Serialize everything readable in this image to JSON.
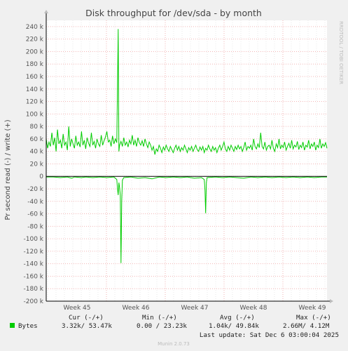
{
  "chart_data": {
    "type": "line",
    "title": "Disk throughput for /dev/sda - by month",
    "ylabel": "Pr second read (-) / write (+)",
    "side_label": "RRDTOOL / TOBI OETIKER",
    "ylim": [
      -200000,
      250000
    ],
    "y_ticks": [
      "240 k",
      "220 k",
      "200 k",
      "180 k",
      "160 k",
      "140 k",
      "120 k",
      "100 k",
      "80 k",
      "60 k",
      "40 k",
      "20 k",
      "0",
      "-20 k",
      "-40 k",
      "-60 k",
      "-80 k",
      "-100 k",
      "-120 k",
      "-140 k",
      "-160 k",
      "-180 k",
      "-200 k"
    ],
    "x_ticks": [
      "Week 45",
      "Week 46",
      "Week 47",
      "Week 48",
      "Week 49"
    ],
    "series": [
      {
        "name": "Bytes",
        "color": "#00cc00"
      }
    ],
    "write_points": [
      [
        0,
        60
      ],
      [
        2,
        45
      ],
      [
        4,
        55
      ],
      [
        6,
        48
      ],
      [
        8,
        70
      ],
      [
        10,
        50
      ],
      [
        12,
        62
      ],
      [
        14,
        40
      ],
      [
        16,
        75
      ],
      [
        18,
        52
      ],
      [
        20,
        58
      ],
      [
        22,
        45
      ],
      [
        24,
        68
      ],
      [
        26,
        50
      ],
      [
        28,
        55
      ],
      [
        30,
        42
      ],
      [
        32,
        80
      ],
      [
        34,
        48
      ],
      [
        36,
        60
      ],
      [
        38,
        52
      ],
      [
        40,
        45
      ],
      [
        42,
        65
      ],
      [
        44,
        50
      ],
      [
        46,
        55
      ],
      [
        48,
        47
      ],
      [
        50,
        72
      ],
      [
        52,
        50
      ],
      [
        54,
        58
      ],
      [
        56,
        44
      ],
      [
        58,
        62
      ],
      [
        60,
        53
      ],
      [
        62,
        48
      ],
      [
        64,
        70
      ],
      [
        66,
        50
      ],
      [
        68,
        56
      ],
      [
        70,
        45
      ],
      [
        72,
        60
      ],
      [
        74,
        52
      ],
      [
        76,
        48
      ],
      [
        78,
        66
      ],
      [
        80,
        50
      ],
      [
        82,
        57
      ],
      [
        84,
        63
      ],
      [
        86,
        72
      ],
      [
        88,
        55
      ],
      [
        90,
        58
      ],
      [
        92,
        48
      ],
      [
        94,
        65
      ],
      [
        96,
        52
      ],
      [
        98,
        60
      ],
      [
        100,
        54
      ],
      [
        102,
        236
      ],
      [
        103,
        40
      ],
      [
        104,
        50
      ],
      [
        106,
        56
      ],
      [
        108,
        48
      ],
      [
        110,
        62
      ],
      [
        112,
        50
      ],
      [
        114,
        55
      ],
      [
        116,
        47
      ],
      [
        118,
        58
      ],
      [
        120,
        52
      ],
      [
        122,
        66
      ],
      [
        124,
        50
      ],
      [
        126,
        58
      ],
      [
        128,
        48
      ],
      [
        130,
        62
      ],
      [
        132,
        54
      ],
      [
        134,
        50
      ],
      [
        136,
        57
      ],
      [
        138,
        48
      ],
      [
        140,
        60
      ],
      [
        142,
        52
      ],
      [
        144,
        46
      ],
      [
        146,
        55
      ],
      [
        148,
        50
      ],
      [
        150,
        42
      ],
      [
        152,
        48
      ],
      [
        154,
        35
      ],
      [
        156,
        44
      ],
      [
        158,
        40
      ],
      [
        160,
        50
      ],
      [
        162,
        45
      ],
      [
        164,
        38
      ],
      [
        166,
        47
      ],
      [
        168,
        42
      ],
      [
        170,
        50
      ],
      [
        172,
        44
      ],
      [
        174,
        40
      ],
      [
        176,
        48
      ],
      [
        178,
        43
      ],
      [
        180,
        38
      ],
      [
        182,
        45
      ],
      [
        184,
        50
      ],
      [
        186,
        42
      ],
      [
        188,
        48
      ],
      [
        190,
        40
      ],
      [
        192,
        46
      ],
      [
        194,
        42
      ],
      [
        196,
        50
      ],
      [
        198,
        44
      ],
      [
        200,
        38
      ],
      [
        202,
        46
      ],
      [
        204,
        42
      ],
      [
        206,
        48
      ],
      [
        208,
        40
      ],
      [
        210,
        45
      ],
      [
        212,
        50
      ],
      [
        214,
        43
      ],
      [
        216,
        40
      ],
      [
        218,
        47
      ],
      [
        220,
        42
      ],
      [
        222,
        48
      ],
      [
        224,
        38
      ],
      [
        226,
        45
      ],
      [
        228,
        42
      ],
      [
        230,
        50
      ],
      [
        232,
        44
      ],
      [
        234,
        40
      ],
      [
        236,
        48
      ],
      [
        238,
        42
      ],
      [
        240,
        46
      ],
      [
        242,
        38
      ],
      [
        244,
        45
      ],
      [
        246,
        50
      ],
      [
        248,
        42
      ],
      [
        250,
        48
      ],
      [
        252,
        55
      ],
      [
        254,
        44
      ],
      [
        256,
        40
      ],
      [
        258,
        48
      ],
      [
        260,
        42
      ],
      [
        262,
        50
      ],
      [
        264,
        45
      ],
      [
        266,
        40
      ],
      [
        268,
        48
      ],
      [
        270,
        43
      ],
      [
        272,
        50
      ],
      [
        274,
        44
      ],
      [
        276,
        48
      ],
      [
        278,
        40
      ],
      [
        280,
        46
      ],
      [
        282,
        55
      ],
      [
        284,
        42
      ],
      [
        286,
        48
      ],
      [
        288,
        45
      ],
      [
        290,
        50
      ],
      [
        292,
        42
      ],
      [
        294,
        60
      ],
      [
        296,
        48
      ],
      [
        298,
        44
      ],
      [
        300,
        52
      ],
      [
        302,
        46
      ],
      [
        304,
        70
      ],
      [
        306,
        48
      ],
      [
        308,
        44
      ],
      [
        310,
        55
      ],
      [
        312,
        42
      ],
      [
        314,
        48
      ],
      [
        316,
        50
      ],
      [
        318,
        44
      ],
      [
        320,
        58
      ],
      [
        322,
        45
      ],
      [
        324,
        40
      ],
      [
        326,
        52
      ],
      [
        328,
        46
      ],
      [
        330,
        60
      ],
      [
        332,
        44
      ],
      [
        334,
        50
      ],
      [
        336,
        46
      ],
      [
        338,
        55
      ],
      [
        340,
        42
      ],
      [
        342,
        48
      ],
      [
        344,
        53
      ],
      [
        346,
        45
      ],
      [
        348,
        58
      ],
      [
        350,
        44
      ],
      [
        352,
        50
      ],
      [
        354,
        47
      ],
      [
        356,
        56
      ],
      [
        358,
        43
      ],
      [
        360,
        50
      ],
      [
        362,
        46
      ],
      [
        364,
        55
      ],
      [
        366,
        42
      ],
      [
        368,
        50
      ],
      [
        370,
        47
      ],
      [
        372,
        58
      ],
      [
        374,
        44
      ],
      [
        376,
        52
      ],
      [
        378,
        48
      ],
      [
        380,
        55
      ],
      [
        382,
        42
      ],
      [
        384,
        50
      ],
      [
        386,
        46
      ],
      [
        388,
        60
      ],
      [
        390,
        45
      ],
      [
        392,
        52
      ],
      [
        394,
        48
      ],
      [
        396,
        54
      ],
      [
        398,
        45
      ]
    ],
    "read_points": [
      [
        0,
        -1
      ],
      [
        10,
        -1
      ],
      [
        20,
        -2
      ],
      [
        30,
        -1
      ],
      [
        36,
        -3
      ],
      [
        40,
        -1
      ],
      [
        50,
        -2
      ],
      [
        56,
        -1
      ],
      [
        66,
        -2
      ],
      [
        76,
        -1
      ],
      [
        86,
        -2
      ],
      [
        96,
        -1
      ],
      [
        100,
        -5
      ],
      [
        101,
        -20
      ],
      [
        102,
        -30
      ],
      [
        103,
        -10
      ],
      [
        104,
        -18
      ],
      [
        105,
        -30
      ],
      [
        106,
        -139
      ],
      [
        107,
        -40
      ],
      [
        108,
        -6
      ],
      [
        110,
        -2
      ],
      [
        120,
        -1
      ],
      [
        130,
        -3
      ],
      [
        140,
        -2
      ],
      [
        150,
        -4
      ],
      [
        160,
        -1
      ],
      [
        170,
        -2
      ],
      [
        180,
        -1
      ],
      [
        190,
        -2
      ],
      [
        200,
        -1
      ],
      [
        210,
        -3
      ],
      [
        220,
        -2
      ],
      [
        224,
        -5
      ],
      [
        225,
        -20
      ],
      [
        226,
        -59
      ],
      [
        227,
        -10
      ],
      [
        228,
        -2
      ],
      [
        240,
        -1
      ],
      [
        250,
        -2
      ],
      [
        260,
        -1
      ],
      [
        270,
        -2
      ],
      [
        280,
        -3
      ],
      [
        290,
        -1
      ],
      [
        300,
        -2
      ],
      [
        310,
        -1
      ],
      [
        320,
        -2
      ],
      [
        330,
        -1
      ],
      [
        340,
        -2
      ],
      [
        350,
        -1
      ],
      [
        360,
        -2
      ],
      [
        370,
        -1
      ],
      [
        380,
        -2
      ],
      [
        390,
        -1
      ],
      [
        398,
        -1
      ]
    ]
  },
  "legend": {
    "headers": [
      "Cur (-/+)",
      "Min (-/+)",
      "Avg (-/+)",
      "Max (-/+)"
    ],
    "row_label": "Bytes",
    "cur": "3.32k/ 53.47k",
    "min": "0.00 / 23.23k",
    "avg": "1.04k/ 49.84k",
    "max": "2.66M/  4.12M",
    "last_update": "Last update: Sat Dec  6 03:00:04 2025"
  },
  "footer": "Munin 2.0.73"
}
